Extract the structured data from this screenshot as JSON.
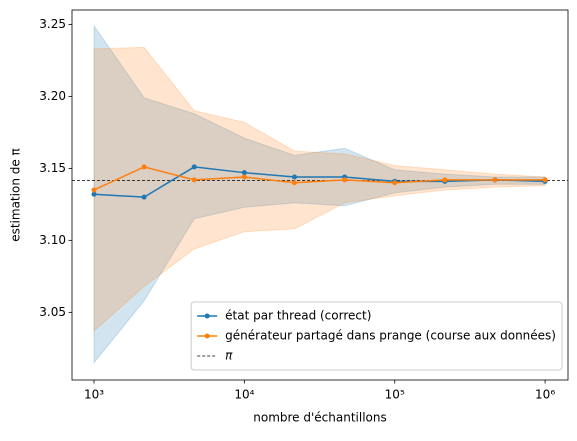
{
  "chart_data": {
    "type": "line",
    "xlabel": "nombre d'échantillons",
    "ylabel": "estimation de π",
    "xscale": "log",
    "x": [
      1000,
      2154,
      4642,
      10000,
      21544,
      46416,
      100000,
      215443,
      464159,
      1000000
    ],
    "series": [
      {
        "name": "état par thread (correct)",
        "color": "#1f77b4",
        "values": [
          3.132,
          3.13,
          3.151,
          3.147,
          3.144,
          3.144,
          3.141,
          3.141,
          3.142,
          3.141
        ],
        "lower": [
          3.015,
          3.058,
          3.115,
          3.123,
          3.126,
          3.124,
          3.133,
          3.137,
          3.139,
          3.139
        ],
        "upper": [
          3.249,
          3.199,
          3.188,
          3.171,
          3.159,
          3.164,
          3.149,
          3.146,
          3.144,
          3.144
        ]
      },
      {
        "name": "générateur partagé dans prange (course aux données)",
        "color": "#ff7f0e",
        "values": [
          3.135,
          3.151,
          3.142,
          3.144,
          3.14,
          3.142,
          3.14,
          3.142,
          3.142,
          3.142
        ],
        "lower": [
          3.037,
          3.068,
          3.094,
          3.106,
          3.108,
          3.126,
          3.131,
          3.135,
          3.137,
          3.138
        ],
        "upper": [
          3.233,
          3.234,
          3.19,
          3.182,
          3.162,
          3.16,
          3.152,
          3.149,
          3.146,
          3.144
        ]
      }
    ],
    "reference_line": {
      "name": "π",
      "value": 3.14159,
      "color": "#000000"
    },
    "xlim": [
      714,
      1420000
    ],
    "xticks": [
      {
        "value": 1000,
        "label": "10³"
      },
      {
        "value": 10000,
        "label": "10⁴"
      },
      {
        "value": 100000,
        "label": "10⁵"
      },
      {
        "value": 1000000,
        "label": "10⁶"
      }
    ],
    "ylim": [
      3.003,
      3.26
    ],
    "yticks": [
      3.05,
      3.1,
      3.15,
      3.2,
      3.25
    ],
    "legend": "lower right"
  }
}
